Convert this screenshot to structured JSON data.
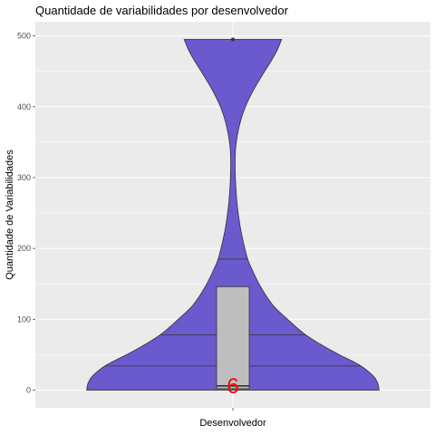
{
  "chart_data": {
    "type": "violin",
    "title": "Quantidade de variabilidades por desenvolvedor",
    "xlabel": "Desenvolvedor",
    "ylabel": "Quantidade de Variabilidades",
    "ylim": [
      -25,
      520
    ],
    "yticks": [
      0,
      100,
      200,
      300,
      400,
      500
    ],
    "xticks": [],
    "colors": {
      "panel": "#ebebeb",
      "grid_major": "#ffffff",
      "violin_fill": "#6a5acd",
      "violin_stroke": "#333333",
      "box_fill": "#bebebe",
      "median_label": "#ff0000"
    },
    "violin": {
      "max_half_width_value": 1.0,
      "density": [
        {
          "y": 0,
          "w": 0.99
        },
        {
          "y": 10,
          "w": 0.98
        },
        {
          "y": 20,
          "w": 0.95
        },
        {
          "y": 35,
          "w": 0.86
        },
        {
          "y": 50,
          "w": 0.72
        },
        {
          "y": 65,
          "w": 0.59
        },
        {
          "y": 80,
          "w": 0.48
        },
        {
          "y": 100,
          "w": 0.37
        },
        {
          "y": 120,
          "w": 0.27
        },
        {
          "y": 145,
          "w": 0.19
        },
        {
          "y": 170,
          "w": 0.13
        },
        {
          "y": 185,
          "w": 0.1
        },
        {
          "y": 205,
          "w": 0.075
        },
        {
          "y": 230,
          "w": 0.05
        },
        {
          "y": 260,
          "w": 0.03
        },
        {
          "y": 290,
          "w": 0.019
        },
        {
          "y": 320,
          "w": 0.015
        },
        {
          "y": 345,
          "w": 0.02
        },
        {
          "y": 370,
          "w": 0.04
        },
        {
          "y": 395,
          "w": 0.075
        },
        {
          "y": 420,
          "w": 0.13
        },
        {
          "y": 445,
          "w": 0.2
        },
        {
          "y": 465,
          "w": 0.26
        },
        {
          "y": 480,
          "w": 0.3
        },
        {
          "y": 490,
          "w": 0.32
        },
        {
          "y": 495,
          "w": 0.33
        }
      ],
      "quantile_lines": [
        {
          "q": 0.25,
          "y": 34
        },
        {
          "q": 0.5,
          "y": 78
        },
        {
          "q": 0.75,
          "y": 185
        }
      ]
    },
    "boxplot": {
      "q1": 2,
      "median": 6,
      "q3": 146,
      "whisker_low": 0,
      "whisker_high": 146,
      "outliers": [
        495
      ]
    },
    "median_label": "6"
  }
}
